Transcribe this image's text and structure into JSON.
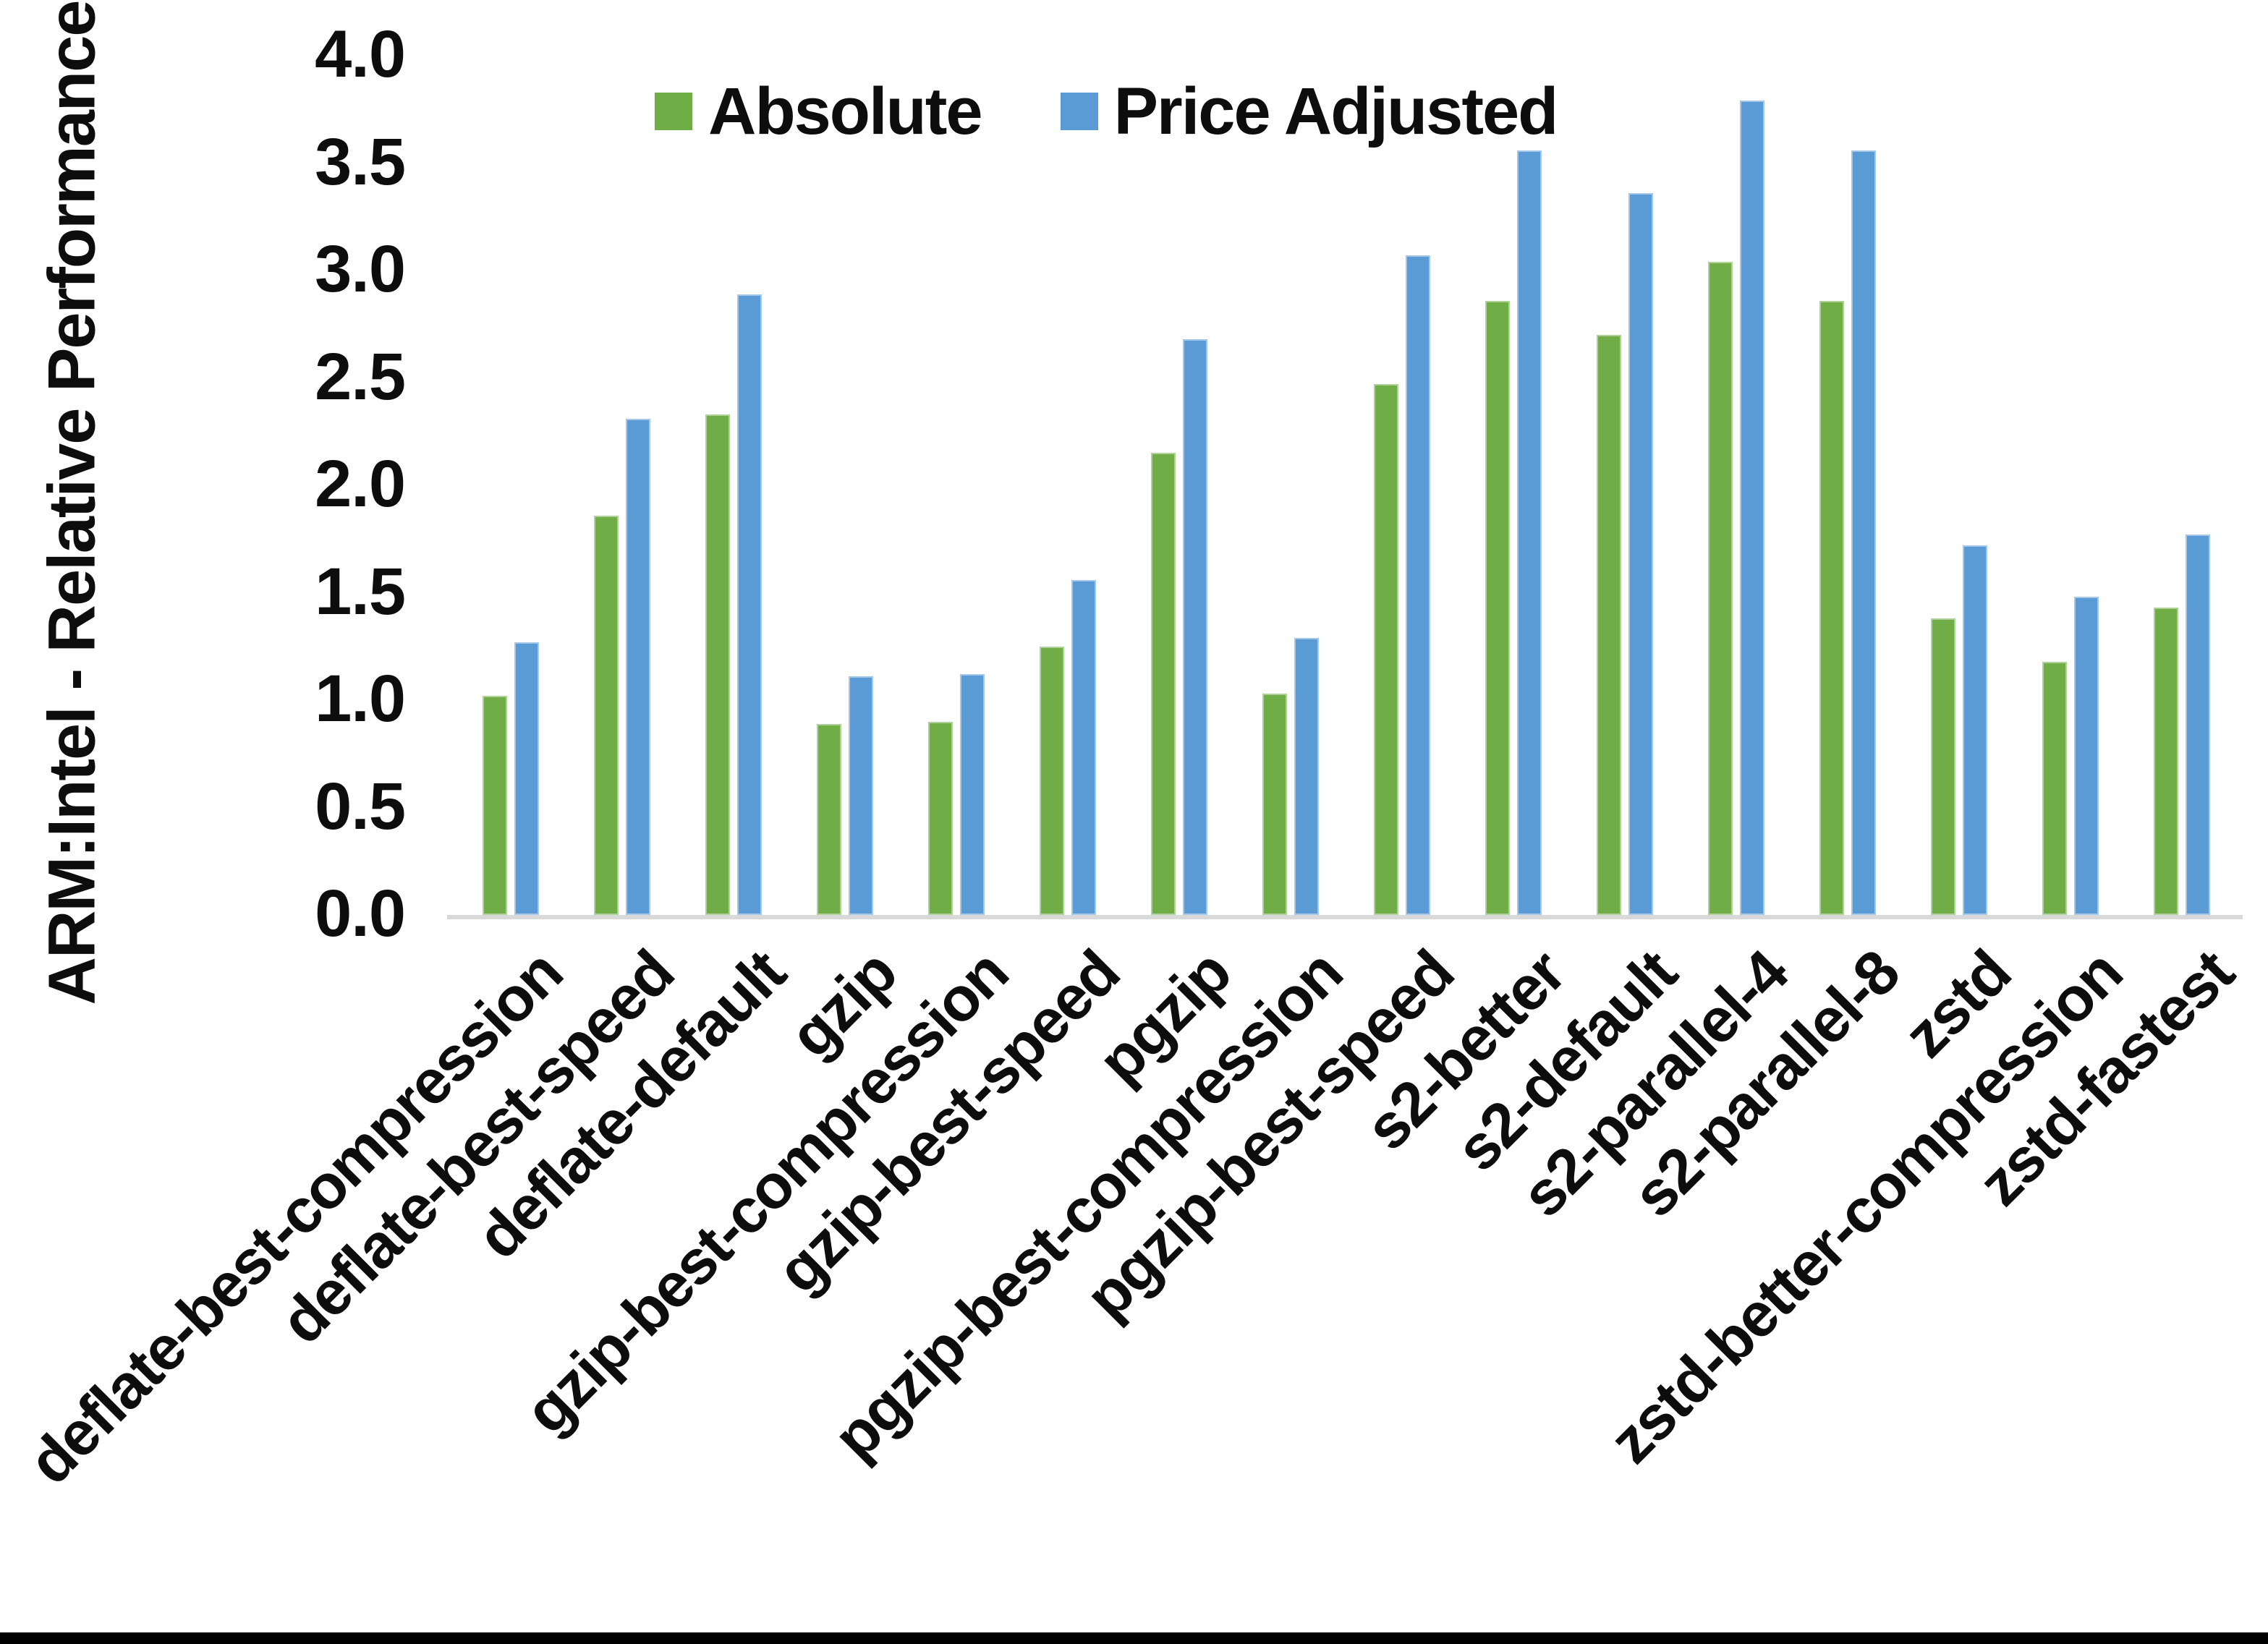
{
  "y_axis": {
    "title": "ARM:Intel - Relative Performance",
    "tick_labels": [
      "0.0",
      "0.5",
      "1.0",
      "1.5",
      "2.0",
      "2.5",
      "3.0",
      "3.5",
      "4.0"
    ],
    "min": 0.0,
    "max": 4.0,
    "step": 0.5
  },
  "legend": {
    "items": [
      {
        "label": "Absolute",
        "color": "#70AD47"
      },
      {
        "label": "Price Adjusted",
        "color": "#5B9BD5"
      }
    ],
    "position": "top"
  },
  "chart_data": {
    "type": "bar",
    "title": "",
    "xlabel": "",
    "ylabel": "ARM:Intel - Relative Performance",
    "ylim": [
      0,
      4.0
    ],
    "ytick_step": 0.5,
    "grid": false,
    "legend_position": "top",
    "categories": [
      "deflate-best-compression",
      "deflate-best-speed",
      "deflate-default",
      "gzip",
      "gzip-best-compression",
      "gzip-best-speed",
      "pgzip",
      "pgzip-best-compression",
      "pgzip-best-speed",
      "s2-better",
      "s2-default",
      "s2-parallel-4",
      "s2-parallel-8",
      "zstd",
      "zstd-better-compression",
      "zstd-fastest"
    ],
    "series": [
      {
        "name": "Absolute",
        "color": "#70AD47",
        "values": [
          1.02,
          1.86,
          2.33,
          0.89,
          0.9,
          1.25,
          2.15,
          1.03,
          2.47,
          2.86,
          2.7,
          3.04,
          2.86,
          1.38,
          1.18,
          1.43
        ]
      },
      {
        "name": "Price Adjusted",
        "color": "#5B9BD5",
        "values": [
          1.27,
          2.31,
          2.89,
          1.11,
          1.12,
          1.56,
          2.68,
          1.29,
          3.07,
          3.56,
          3.36,
          3.79,
          3.56,
          1.72,
          1.48,
          1.77
        ]
      }
    ],
    "axis_line_color": "#D9D9D9",
    "text_color": "#0D0D0D"
  }
}
